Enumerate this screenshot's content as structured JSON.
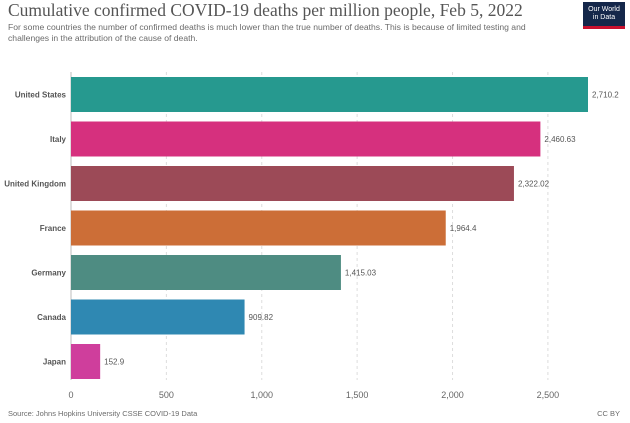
{
  "title": "Cumulative confirmed COVID-19 deaths per million people, Feb 5, 2022",
  "subtitle": "For some countries the number of confirmed deaths is much lower than the true number of deaths. This is because of limited testing and challenges in the attribution of the cause of death.",
  "logo": {
    "line1": "Our World",
    "line2": "in Data"
  },
  "source": "Source: Johns Hopkins University CSSE COVID-19 Data",
  "license": "CC BY",
  "chart_data": {
    "type": "bar",
    "orientation": "horizontal",
    "categories": [
      "United States",
      "Italy",
      "United Kingdom",
      "France",
      "Germany",
      "Canada",
      "Japan"
    ],
    "values": [
      2710.2,
      2460.63,
      2322.02,
      1964.4,
      1415.03,
      909.82,
      152.9
    ],
    "value_labels": [
      "2,710.2",
      "2,460.63",
      "2,322.02",
      "1,964.4",
      "1,415.03",
      "909.82",
      "152.9"
    ],
    "colors": [
      "#26998f",
      "#d6307e",
      "#9c4a57",
      "#cc6e37",
      "#4e8c82",
      "#2f88b2",
      "#cf3e9c"
    ],
    "xticks": [
      0,
      500,
      1000,
      1500,
      2000,
      2500
    ],
    "xtick_labels": [
      "0",
      "500",
      "1,000",
      "1,500",
      "2,000",
      "2,500"
    ],
    "xlim": [
      0,
      2710.2
    ],
    "grid": true
  }
}
